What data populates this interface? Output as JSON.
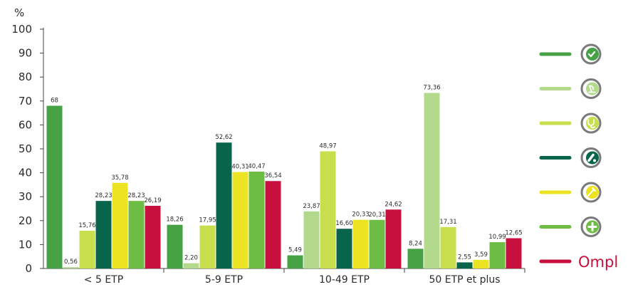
{
  "chart_data": {
    "type": "bar",
    "ylabel": "%",
    "ylim": [
      0,
      100
    ],
    "yticks": [
      "0",
      "10",
      "20",
      "30",
      "40",
      "50",
      "60",
      "70",
      "80",
      "90",
      "100"
    ],
    "categories": [
      "< 5 ETP",
      "5-9 ETP",
      "10-49 ETP",
      "50 ETP et plus"
    ],
    "grid": false,
    "legend_position": "right",
    "series": [
      {
        "color": "#46a245",
        "icon": "check-circle-icon",
        "values": [
          68,
          18.26,
          5.49,
          8.24
        ],
        "labels": [
          "68",
          "18,26",
          "5,49",
          "8,24"
        ]
      },
      {
        "color": "#b2d98c",
        "icon": "microscope-circle-icon",
        "values": [
          0.56,
          2.2,
          23.87,
          73.36
        ],
        "labels": [
          "0,56",
          "2,20",
          "23,87",
          "73,36"
        ]
      },
      {
        "color": "#c9de4c",
        "icon": "stethoscope-circle-icon",
        "values": [
          15.76,
          17.95,
          48.97,
          17.31
        ],
        "labels": [
          "15,76",
          "17,95",
          "48,97",
          "17,31"
        ]
      },
      {
        "color": "#08644a",
        "icon": "pills-circle-icon",
        "values": [
          28.23,
          52.62,
          16.6,
          2.55
        ],
        "labels": [
          "28,23",
          "52,62",
          "16,60",
          "2,55"
        ]
      },
      {
        "color": "#ece423",
        "icon": "syringe-circle-icon",
        "values": [
          35.78,
          40.31,
          20.33,
          3.59
        ],
        "labels": [
          "35,78",
          "40,31",
          "20,33",
          "3,59"
        ]
      },
      {
        "color": "#6dbd45",
        "icon": "cross-circle-icon",
        "values": [
          28.23,
          40.47,
          20.31,
          10.99
        ],
        "labels": [
          "28,23",
          "40,47",
          "20,31",
          "10,99"
        ]
      },
      {
        "color": "#c8103e",
        "icon": "ompl-logo",
        "values": [
          26.19,
          36.54,
          24.62,
          12.65
        ],
        "labels": [
          "26,19",
          "36,54",
          "24,62",
          "12,65"
        ]
      }
    ],
    "legend_logo_text": "Ompl",
    "icon_ring_color": "#7a7a7a"
  }
}
